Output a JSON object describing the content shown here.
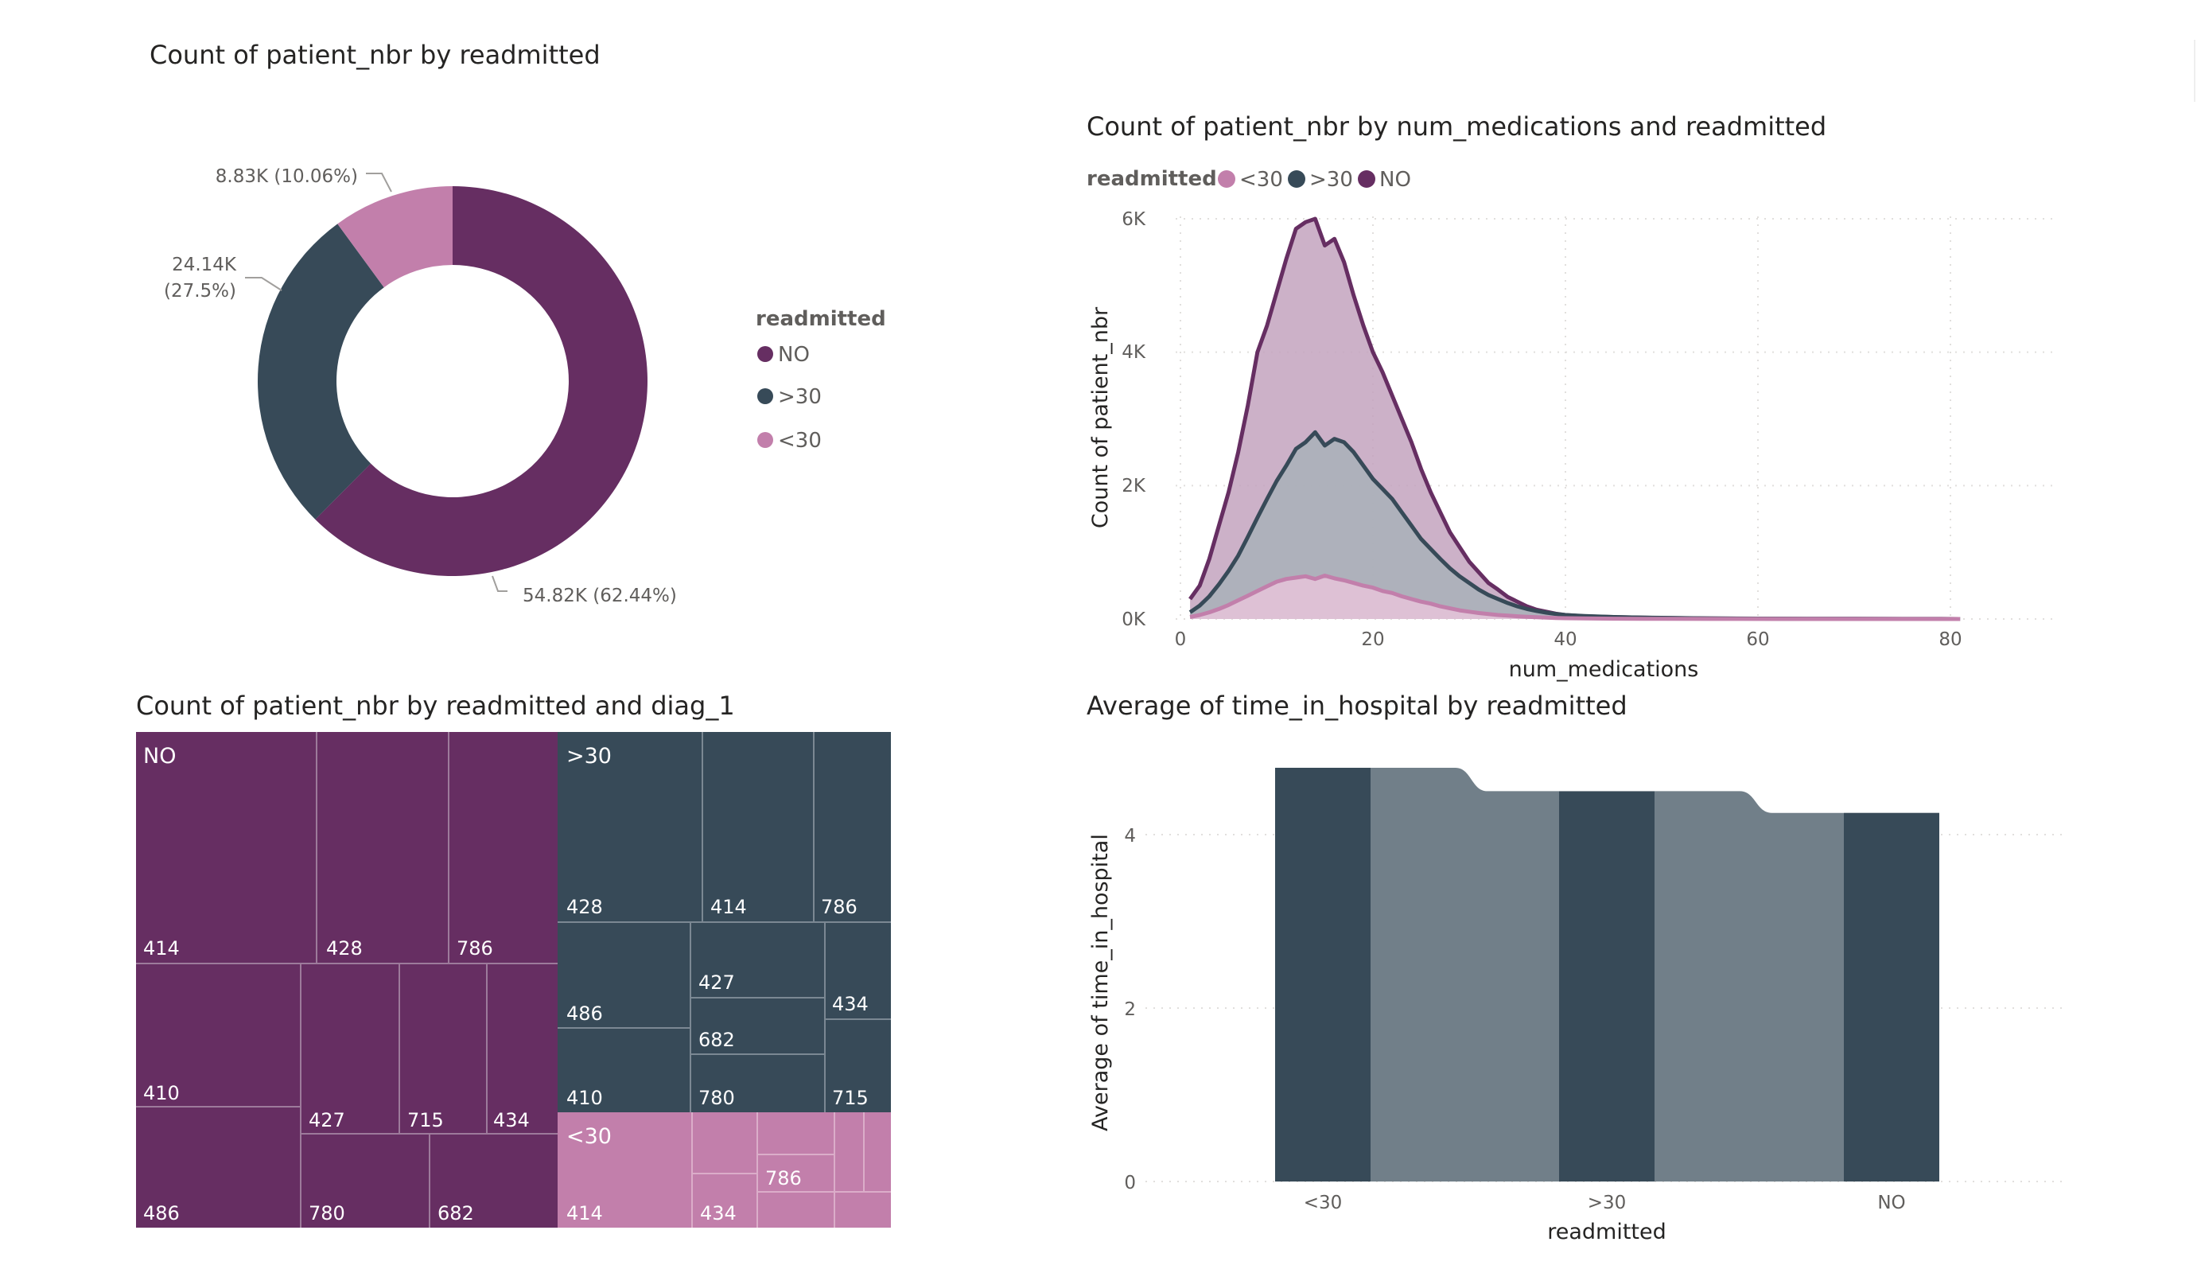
{
  "colors": {
    "no": "#662e62",
    "gt30": "#374a58",
    "lt30": "#c27fab",
    "gt30_light": "#717f89"
  },
  "donut": {
    "title": "Count of patient_nbr by readmitted",
    "legend_title": "readmitted",
    "data_labels": [
      "54.82K (62.44%)",
      "24.14K",
      "(27.5%)",
      "8.83K (10.06%)"
    ]
  },
  "area": {
    "title": "Count of patient_nbr by num_medications and readmitted",
    "legend_title": "readmitted",
    "ylabel": "Count of patient_nbr",
    "xlabel": "num_medications",
    "y_ticks": [
      "6K",
      "4K",
      "2K",
      "0K"
    ],
    "x_ticks": [
      "0",
      "20",
      "40",
      "60",
      "80"
    ]
  },
  "treemap": {
    "title": "Count of patient_nbr by readmitted and diag_1"
  },
  "bars": {
    "title": "Average of time_in_hospital by readmitted",
    "ylabel": "Average of time_in_hospital",
    "xlabel": "readmitted",
    "y_ticks": [
      "4",
      "2",
      "0"
    ]
  },
  "chart_data": [
    {
      "type": "pie",
      "title": "Count of patient_nbr by readmitted",
      "legend": [
        "NO",
        ">30",
        "<30"
      ],
      "legend_position": "right",
      "categories": [
        "NO",
        ">30",
        "<30"
      ],
      "values": [
        54820,
        24140,
        8830
      ],
      "percentages": [
        62.44,
        27.5,
        10.06
      ]
    },
    {
      "type": "area",
      "title": "Count of patient_nbr by num_medications and readmitted",
      "xlabel": "num_medications",
      "ylabel": "Count of patient_nbr",
      "xlim": [
        0,
        90
      ],
      "ylim": [
        0,
        6000
      ],
      "legend": [
        "<30",
        ">30",
        "NO"
      ],
      "legend_position": "top-left",
      "grid": true,
      "x": [
        1,
        2,
        3,
        4,
        5,
        6,
        7,
        8,
        9,
        10,
        11,
        12,
        13,
        14,
        15,
        16,
        17,
        18,
        19,
        20,
        21,
        22,
        23,
        24,
        25,
        26,
        27,
        28,
        29,
        30,
        31,
        32,
        33,
        34,
        35,
        36,
        37,
        38,
        39,
        40,
        42,
        45,
        48,
        50,
        55,
        60,
        65,
        70,
        75,
        79,
        81
      ],
      "series": [
        {
          "name": "<30",
          "values": [
            30,
            60,
            100,
            150,
            210,
            280,
            350,
            420,
            490,
            560,
            600,
            620,
            640,
            600,
            650,
            610,
            580,
            540,
            500,
            470,
            420,
            390,
            340,
            300,
            260,
            230,
            190,
            160,
            130,
            110,
            90,
            75,
            60,
            50,
            40,
            32,
            26,
            20,
            16,
            12,
            8,
            5,
            3,
            2,
            1,
            1,
            0,
            0,
            0,
            0,
            0
          ]
        },
        {
          "name": ">30",
          "values": [
            100,
            200,
            340,
            520,
            720,
            950,
            1230,
            1520,
            1800,
            2070,
            2300,
            2550,
            2650,
            2800,
            2600,
            2700,
            2650,
            2500,
            2300,
            2100,
            1950,
            1800,
            1600,
            1400,
            1200,
            1050,
            900,
            760,
            640,
            540,
            440,
            360,
            300,
            240,
            190,
            150,
            120,
            95,
            75,
            60,
            45,
            30,
            22,
            18,
            10,
            6,
            4,
            2,
            1,
            1,
            0
          ]
        },
        {
          "name": "NO",
          "values": [
            300,
            500,
            900,
            1400,
            1900,
            2500,
            3200,
            4000,
            4400,
            4900,
            5400,
            5850,
            5950,
            6000,
            5600,
            5700,
            5350,
            4850,
            4400,
            4000,
            3700,
            3350,
            3000,
            2650,
            2250,
            1900,
            1600,
            1300,
            1080,
            860,
            700,
            540,
            440,
            330,
            260,
            190,
            140,
            110,
            80,
            60,
            40,
            30,
            20,
            15,
            8,
            5,
            3,
            2,
            1,
            1,
            0
          ]
        }
      ]
    },
    {
      "type": "treemap",
      "title": "Count of patient_nbr by readmitted and diag_1",
      "groups": [
        {
          "name": "NO",
          "children": [
            "414",
            "428",
            "786",
            "410",
            "427",
            "715",
            "434",
            "486",
            "780",
            "682"
          ]
        },
        {
          "name": ">30",
          "children": [
            "428",
            "414",
            "786",
            "486",
            "427",
            "682",
            "434",
            "410",
            "780",
            "715"
          ]
        },
        {
          "name": "<30",
          "children": [
            "414",
            "434",
            "786"
          ]
        }
      ]
    },
    {
      "type": "bar",
      "title": "Average of time_in_hospital by readmitted",
      "xlabel": "readmitted",
      "ylabel": "Average of time_in_hospital",
      "categories": [
        "<30",
        ">30",
        "NO"
      ],
      "values": [
        4.77,
        4.5,
        4.25
      ],
      "ylim": [
        0,
        4.77
      ],
      "grid": true
    }
  ]
}
